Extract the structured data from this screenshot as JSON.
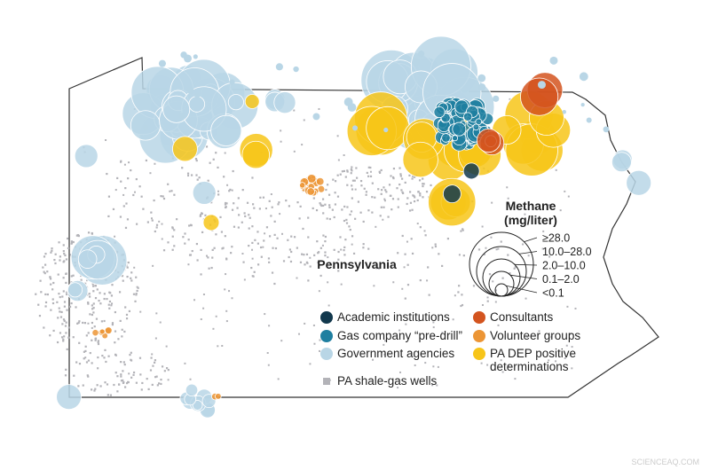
{
  "map": {
    "state_label": "Pennsylvania",
    "size_legend": {
      "title": "Methane",
      "unit": "(mg/liter)",
      "classes": [
        "≥28.0",
        "10.0–28.0",
        "2.0–10.0",
        "0.1–2.0",
        "<0.1"
      ]
    },
    "legend": [
      {
        "label": "Academic institutions",
        "color": "#12384d"
      },
      {
        "label": "Gas company “pre-drill”",
        "color": "#1f7fa0"
      },
      {
        "label": "Government agencies",
        "color": "#b9d6e6"
      },
      {
        "label": "Consultants",
        "color": "#d3541f"
      },
      {
        "label": "Volunteer groups",
        "color": "#ec9535"
      },
      {
        "label": "PA DEP positive determinations",
        "color": "#f7c519"
      }
    ],
    "wells": {
      "label": "PA shale-gas wells",
      "color": "#b3b3b8"
    },
    "watermark": "SCIENCEAQ.COM"
  }
}
